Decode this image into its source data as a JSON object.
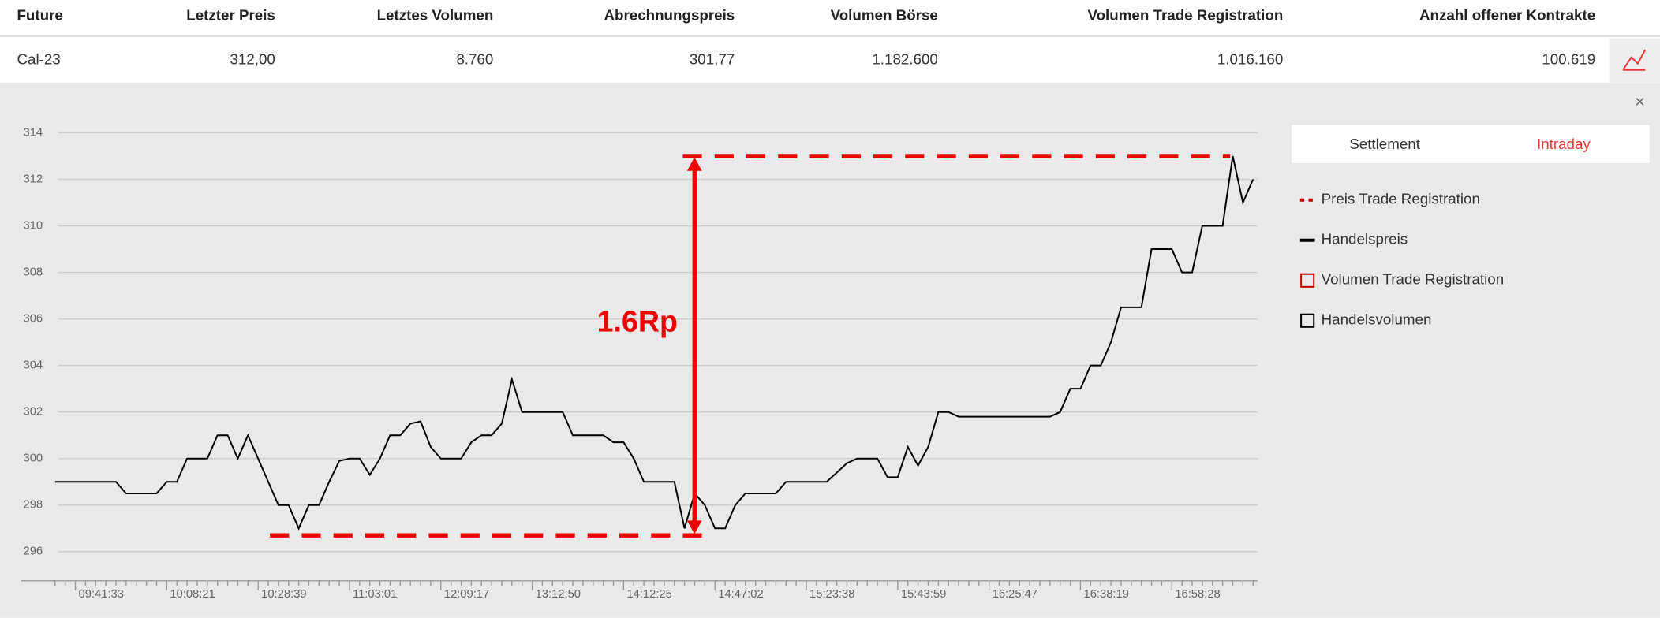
{
  "table": {
    "columns": [
      "Future",
      "Letzter Preis",
      "Letztes Volumen",
      "Abrechnungspreis",
      "Volumen Börse",
      "Volumen Trade Registration",
      "Anzahl offener Kontrakte"
    ],
    "rows": [
      [
        "Cal-23",
        "312,00",
        "8.760",
        "301,77",
        "1.182.600",
        "1.016.160",
        "100.619"
      ]
    ]
  },
  "close": "×",
  "tabs": [
    "Settlement",
    "Intraday"
  ],
  "legend_items": [
    {
      "name": "Preis Trade Registration",
      "color": "#c00000"
    },
    {
      "name": "Volumen Trade Registration",
      "color": "#c00000"
    },
    {
      "name": "Handelsvolumen",
      "color": "#000000"
    }
  ],
  "chart_data": {
    "type": "line",
    "categories": [
      null,
      null,
      "09:41:33",
      null,
      null,
      null,
      null,
      null,
      null,
      null,
      null,
      "10:08:21",
      null,
      null,
      null,
      null,
      null,
      null,
      null,
      null,
      "10:28:39",
      null,
      null,
      null,
      null,
      null,
      null,
      null,
      null,
      "11:03:01",
      null,
      null,
      null,
      null,
      null,
      null,
      null,
      null,
      "12:09:17",
      null,
      null,
      null,
      null,
      null,
      null,
      null,
      null,
      "13:12:50",
      null,
      null,
      null,
      null,
      null,
      null,
      null,
      null,
      "14:12:25",
      null,
      null,
      null,
      null,
      null,
      null,
      null,
      null,
      "14:47:02",
      null,
      null,
      null,
      null,
      null,
      null,
      null,
      null,
      "15:23:38",
      null,
      null,
      null,
      null,
      null,
      null,
      null,
      null,
      "15:43:59",
      null,
      null,
      null,
      null,
      null,
      null,
      null,
      null,
      "16:25:47",
      null,
      null,
      null,
      null,
      null,
      null,
      null,
      null,
      "16:38:19",
      null,
      null,
      null,
      null,
      null,
      null,
      null,
      null,
      "16:58:28",
      null,
      null,
      null,
      null,
      null,
      null,
      null,
      null
    ],
    "series": [
      {
        "name": "Handelspreis",
        "color": "#000000",
        "values": [
          299,
          299,
          299,
          299,
          299,
          299,
          299,
          298.5,
          298.5,
          298.5,
          298.5,
          299,
          299,
          300,
          300,
          300,
          301,
          301,
          300,
          301,
          300,
          299,
          298,
          298,
          297,
          298,
          298,
          299,
          299.9,
          300,
          300,
          299.3,
          300,
          301,
          301,
          301.5,
          301.6,
          300.5,
          300,
          300,
          300,
          300.7,
          301,
          301,
          301.5,
          303.4,
          302,
          302,
          302,
          302,
          302,
          301,
          301,
          301,
          301,
          300.7,
          300.7,
          300,
          299,
          299,
          299,
          299,
          297,
          298.5,
          298,
          297,
          297,
          298,
          298.5,
          298.5,
          298.5,
          298.5,
          299,
          299,
          299,
          299,
          299,
          299.4,
          299.8,
          300,
          300,
          300,
          299.2,
          299.2,
          300.5,
          299.7,
          300.5,
          302,
          302,
          301.8,
          301.8,
          301.8,
          301.8,
          301.8,
          301.8,
          301.8,
          301.8,
          301.8,
          301.8,
          302,
          303,
          303,
          304,
          304,
          305,
          306.5,
          306.5,
          306.5,
          309,
          309,
          309,
          308,
          308,
          310,
          310,
          310,
          313,
          311,
          312
        ]
      }
    ],
    "ylim": [
      294.7,
      314.7
    ],
    "yticks": [
      296,
      298,
      300,
      302,
      304,
      306,
      308,
      310,
      312,
      314
    ],
    "grid": true,
    "annotation": {
      "text": "1.6Rp",
      "color": "#ee0000",
      "low": 296.7,
      "high": 313
    }
  }
}
